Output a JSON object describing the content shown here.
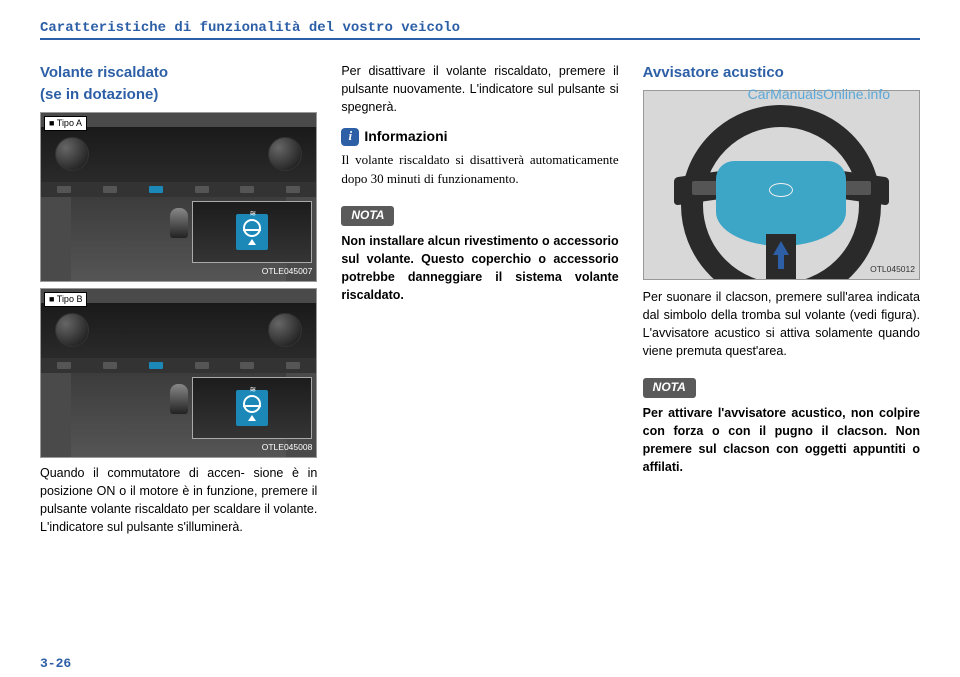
{
  "chapter_title": "Caratteristiche di funzionalità del vostro veicolo",
  "watermark": "CarManualsOnline.info",
  "page_number": "3-26",
  "col1": {
    "section_title_l1": "Volante riscaldato",
    "section_title_l2": "(se in dotazione)",
    "imgA": {
      "label": "■ Tipo A",
      "code": "OTLE045007"
    },
    "imgB": {
      "label": "■ Tipo B",
      "code": "OTLE045008"
    },
    "body": "Quando il commutatore di accen-\nsione è in posizione ON o il motore è in funzione, premere il pulsante volante riscaldato per scaldare il volante. L'indicatore sul pulsante s'illuminerà."
  },
  "col2": {
    "p1": "Per disattivare il volante riscaldato, premere il pulsante nuovamente. L'indicatore sul pulsante si spegnerà.",
    "info_title": "Informazioni",
    "info_body": "Il volante riscaldato si disattiverà automaticamente dopo 30 minuti di funzionamento.",
    "nota_label": "NOTA",
    "nota_body": "Non installare alcun rivestimento o accessorio sul volante. Questo coperchio o accessorio potrebbe danneggiare il sistema volante riscaldato."
  },
  "col3": {
    "section_title": "Avvisatore acustico",
    "img_code": "OTL045012",
    "body": "Per suonare il clacson, premere sull'area indicata dal simbolo della tromba sul volante (vedi figura). L'avvisatore acustico si attiva solamente quando viene premuta quest'area.",
    "nota_label": "NOTA",
    "nota_body": "Per attivare l'avvisatore acustico, non colpire con forza o con il pugno il clacson. Non premere sul clacson con oggetti appuntiti o affilati."
  },
  "colors": {
    "brand_blue": "#2d5fa6",
    "highlight_teal": "#3da6c7",
    "nota_bg": "#5a5a5a",
    "watermark_blue": "#5ba7d8"
  }
}
